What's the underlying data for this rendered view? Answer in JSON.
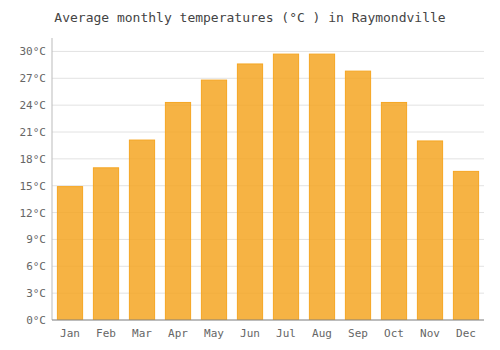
{
  "chart_data": {
    "type": "bar",
    "title": "Average monthly temperatures (°C ) in Raymondville",
    "categories": [
      "Jan",
      "Feb",
      "Mar",
      "Apr",
      "May",
      "Jun",
      "Jul",
      "Aug",
      "Sep",
      "Oct",
      "Nov",
      "Dec"
    ],
    "values": [
      14.9,
      17.0,
      20.1,
      24.3,
      26.8,
      28.6,
      29.7,
      29.7,
      27.8,
      24.3,
      20.0,
      16.6
    ],
    "color": "#F5A623",
    "ylim": [
      0,
      31.5
    ],
    "yticks": [
      {
        "value": 0,
        "label": "0°C"
      },
      {
        "value": 3,
        "label": "3°C"
      },
      {
        "value": 6,
        "label": "6°C"
      },
      {
        "value": 9,
        "label": "9°C"
      },
      {
        "value": 12,
        "label": "12°C"
      },
      {
        "value": 15,
        "label": "15°C"
      },
      {
        "value": 18,
        "label": "18°C"
      },
      {
        "value": 21,
        "label": "21°C"
      },
      {
        "value": 24,
        "label": "24°C"
      },
      {
        "value": 27,
        "label": "27°C"
      },
      {
        "value": 30,
        "label": "30°C"
      }
    ],
    "grid": true
  }
}
